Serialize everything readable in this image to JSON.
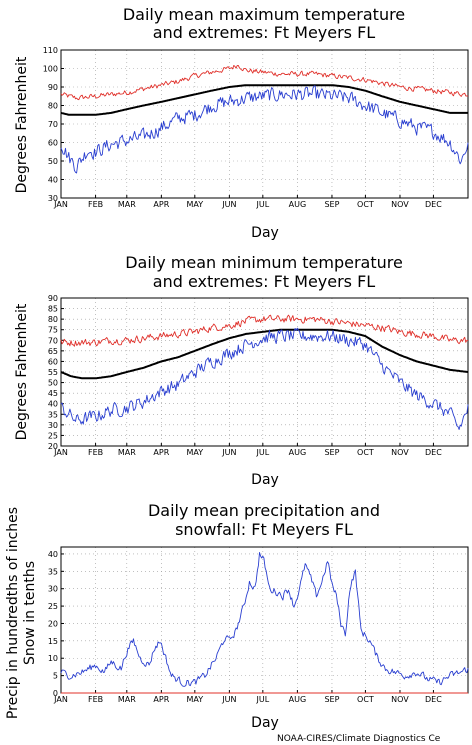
{
  "colors": {
    "max_line": "#e0302a",
    "mean_line": "#000000",
    "min_line": "#2a3fd0",
    "precip_line": "#2a3fd0",
    "snow_line": "#e0302a",
    "grid": "#9a9a9a"
  },
  "footer": {
    "credit": "NOAA-CIRES/Climate Diagnostics Ce"
  },
  "chart_data": [
    {
      "type": "line",
      "title_lines": [
        "Daily mean maximum temperature",
        "and extremes: Ft Meyers FL"
      ],
      "xlabel": "Day",
      "ylabel": "Degrees Fahrenheit",
      "ylim": [
        30,
        110
      ],
      "yticks": [
        30,
        40,
        50,
        60,
        70,
        80,
        90,
        100,
        110
      ],
      "month_ticks": [
        "JAN",
        "FEB",
        "MAR",
        "APR",
        "MAY",
        "JUN",
        "JUL",
        "AUG",
        "SEP",
        "OCT",
        "NOV",
        "DEC"
      ],
      "grid": true,
      "series": [
        {
          "role": "upper",
          "color": "#e0302a",
          "noise": 2.0,
          "anchors": [
            [
              1,
              86
            ],
            [
              15,
              84
            ],
            [
              32,
              85
            ],
            [
              46,
              86
            ],
            [
              60,
              87
            ],
            [
              75,
              89
            ],
            [
              91,
              91
            ],
            [
              106,
              93
            ],
            [
              121,
              96
            ],
            [
              136,
              98
            ],
            [
              152,
              100
            ],
            [
              160,
              102
            ],
            [
              167,
              99
            ],
            [
              182,
              98
            ],
            [
              198,
              97
            ],
            [
              213,
              97
            ],
            [
              228,
              97
            ],
            [
              244,
              96
            ],
            [
              259,
              95
            ],
            [
              274,
              94
            ],
            [
              289,
              92
            ],
            [
              305,
              90
            ],
            [
              320,
              89
            ],
            [
              335,
              88
            ],
            [
              350,
              87
            ],
            [
              366,
              86
            ]
          ]
        },
        {
          "role": "mean",
          "color": "#000000",
          "noise": 0,
          "anchors": [
            [
              1,
              76
            ],
            [
              8,
              75
            ],
            [
              20,
              75
            ],
            [
              32,
              75
            ],
            [
              46,
              76
            ],
            [
              60,
              78
            ],
            [
              75,
              80
            ],
            [
              91,
              82
            ],
            [
              106,
              84
            ],
            [
              121,
              86
            ],
            [
              136,
              88
            ],
            [
              152,
              90
            ],
            [
              167,
              91
            ],
            [
              182,
              91
            ],
            [
              198,
              91
            ],
            [
              213,
              91
            ],
            [
              228,
              91
            ],
            [
              244,
              91
            ],
            [
              259,
              90
            ],
            [
              274,
              88
            ],
            [
              289,
              85
            ],
            [
              305,
              82
            ],
            [
              320,
              80
            ],
            [
              335,
              78
            ],
            [
              350,
              76
            ],
            [
              366,
              76
            ]
          ]
        },
        {
          "role": "lower",
          "color": "#2a3fd0",
          "noise": 5.5,
          "anchors": [
            [
              1,
              60
            ],
            [
              8,
              52
            ],
            [
              15,
              47
            ],
            [
              25,
              56
            ],
            [
              32,
              55
            ],
            [
              46,
              59
            ],
            [
              60,
              61
            ],
            [
              75,
              63
            ],
            [
              91,
              68
            ],
            [
              106,
              73
            ],
            [
              121,
              75
            ],
            [
              136,
              80
            ],
            [
              152,
              82
            ],
            [
              167,
              84
            ],
            [
              182,
              85
            ],
            [
              198,
              86
            ],
            [
              213,
              86
            ],
            [
              228,
              86
            ],
            [
              244,
              85
            ],
            [
              259,
              84
            ],
            [
              274,
              80
            ],
            [
              289,
              76
            ],
            [
              305,
              72
            ],
            [
              320,
              68
            ],
            [
              335,
              66
            ],
            [
              350,
              60
            ],
            [
              360,
              50
            ],
            [
              366,
              60
            ]
          ]
        }
      ]
    },
    {
      "type": "line",
      "title_lines": [
        "Daily mean minimum temperature",
        "and extremes: Ft Meyers FL"
      ],
      "xlabel": "Day",
      "ylabel": "Degrees Fahrenheit",
      "ylim": [
        20,
        90
      ],
      "yticks": [
        20,
        25,
        30,
        35,
        40,
        45,
        50,
        55,
        60,
        65,
        70,
        75,
        80,
        85,
        90
      ],
      "month_ticks": [
        "JAN",
        "FEB",
        "MAR",
        "APR",
        "MAY",
        "JUN",
        "JUL",
        "AUG",
        "SEP",
        "OCT",
        "NOV",
        "DEC"
      ],
      "grid": true,
      "series": [
        {
          "role": "upper",
          "color": "#e0302a",
          "noise": 2.5,
          "anchors": [
            [
              1,
              69
            ],
            [
              15,
              69
            ],
            [
              32,
              69
            ],
            [
              46,
              70
            ],
            [
              60,
              70
            ],
            [
              75,
              71
            ],
            [
              91,
              72
            ],
            [
              106,
              73
            ],
            [
              121,
              74
            ],
            [
              136,
              76
            ],
            [
              152,
              77
            ],
            [
              167,
              79
            ],
            [
              182,
              80
            ],
            [
              198,
              80
            ],
            [
              213,
              80
            ],
            [
              228,
              80
            ],
            [
              244,
              79
            ],
            [
              259,
              78
            ],
            [
              274,
              77
            ],
            [
              289,
              76
            ],
            [
              305,
              74
            ],
            [
              320,
              73
            ],
            [
              335,
              72
            ],
            [
              350,
              70
            ],
            [
              366,
              70
            ]
          ]
        },
        {
          "role": "mean",
          "color": "#000000",
          "noise": 0,
          "anchors": [
            [
              1,
              55
            ],
            [
              10,
              53
            ],
            [
              20,
              52
            ],
            [
              32,
              52
            ],
            [
              46,
              53
            ],
            [
              60,
              55
            ],
            [
              75,
              57
            ],
            [
              91,
              60
            ],
            [
              106,
              62
            ],
            [
              121,
              65
            ],
            [
              136,
              68
            ],
            [
              152,
              71
            ],
            [
              167,
              73
            ],
            [
              182,
              74
            ],
            [
              198,
              75
            ],
            [
              213,
              75
            ],
            [
              228,
              75
            ],
            [
              244,
              75
            ],
            [
              259,
              74
            ],
            [
              274,
              72
            ],
            [
              289,
              67
            ],
            [
              305,
              63
            ],
            [
              320,
              60
            ],
            [
              335,
              58
            ],
            [
              350,
              56
            ],
            [
              366,
              55
            ]
          ]
        },
        {
          "role": "lower",
          "color": "#2a3fd0",
          "noise": 4.5,
          "anchors": [
            [
              1,
              38
            ],
            [
              15,
              32
            ],
            [
              32,
              34
            ],
            [
              46,
              37
            ],
            [
              60,
              38
            ],
            [
              75,
              41
            ],
            [
              91,
              46
            ],
            [
              106,
              49
            ],
            [
              121,
              55
            ],
            [
              136,
              60
            ],
            [
              152,
              64
            ],
            [
              167,
              68
            ],
            [
              182,
              71
            ],
            [
              198,
              72
            ],
            [
              213,
              72
            ],
            [
              228,
              72
            ],
            [
              244,
              72
            ],
            [
              259,
              70
            ],
            [
              274,
              68
            ],
            [
              289,
              58
            ],
            [
              305,
              50
            ],
            [
              320,
              44
            ],
            [
              335,
              40
            ],
            [
              350,
              35
            ],
            [
              358,
              28
            ],
            [
              366,
              38
            ]
          ]
        }
      ]
    },
    {
      "type": "line",
      "title_lines": [
        "Daily mean precipitation and",
        "snowfall: Ft Meyers FL"
      ],
      "xlabel": "Day",
      "ylabel_lines": [
        "Precip in hundredths of inches",
        "Snow in tenths"
      ],
      "ylim": [
        0,
        42
      ],
      "yticks": [
        0,
        5,
        10,
        15,
        20,
        25,
        30,
        35,
        40
      ],
      "month_ticks": [
        "JAN",
        "FEB",
        "MAR",
        "APR",
        "MAY",
        "JUN",
        "JUL",
        "AUG",
        "SEP",
        "OCT",
        "NOV",
        "DEC"
      ],
      "grid": true,
      "series": [
        {
          "role": "precipitation",
          "color": "#2a3fd0",
          "noise": 1.5,
          "anchors": [
            [
              1,
              6
            ],
            [
              10,
              5
            ],
            [
              20,
              6
            ],
            [
              32,
              8
            ],
            [
              40,
              6
            ],
            [
              46,
              9
            ],
            [
              55,
              7
            ],
            [
              60,
              12
            ],
            [
              66,
              15
            ],
            [
              72,
              10
            ],
            [
              80,
              8
            ],
            [
              85,
              13
            ],
            [
              90,
              15
            ],
            [
              95,
              10
            ],
            [
              100,
              5
            ],
            [
              110,
              3
            ],
            [
              121,
              3
            ],
            [
              130,
              5
            ],
            [
              140,
              10
            ],
            [
              148,
              16
            ],
            [
              152,
              15
            ],
            [
              158,
              18
            ],
            [
              165,
              25
            ],
            [
              170,
              32
            ],
            [
              175,
              30
            ],
            [
              179,
              40
            ],
            [
              183,
              38
            ],
            [
              188,
              30
            ],
            [
              195,
              29
            ],
            [
              200,
              28
            ],
            [
              205,
              30
            ],
            [
              210,
              25
            ],
            [
              215,
              30
            ],
            [
              220,
              37
            ],
            [
              225,
              33
            ],
            [
              230,
              28
            ],
            [
              235,
              32
            ],
            [
              240,
              38
            ],
            [
              245,
              30
            ],
            [
              248,
              28
            ],
            [
              252,
              20
            ],
            [
              256,
              17
            ],
            [
              260,
              30
            ],
            [
              265,
              35
            ],
            [
              270,
              18
            ],
            [
              278,
              15
            ],
            [
              285,
              10
            ],
            [
              292,
              7
            ],
            [
              300,
              6
            ],
            [
              310,
              5
            ],
            [
              320,
              6
            ],
            [
              330,
              4
            ],
            [
              340,
              3
            ],
            [
              350,
              5
            ],
            [
              360,
              6
            ],
            [
              366,
              7
            ]
          ]
        },
        {
          "role": "snowfall",
          "color": "#e0302a",
          "noise": 0,
          "anchors": [
            [
              1,
              0
            ],
            [
              366,
              0
            ]
          ]
        }
      ]
    }
  ]
}
